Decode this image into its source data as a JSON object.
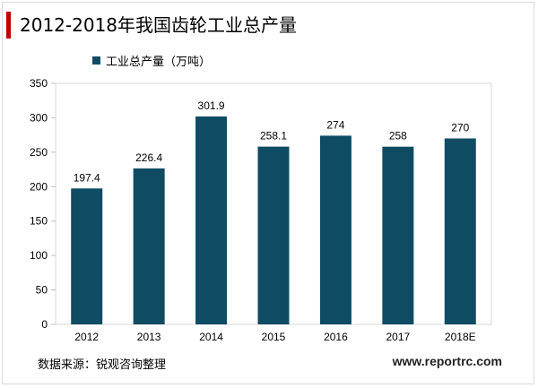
{
  "header": {
    "title": "2012-2018年我国齿轮工业总产量"
  },
  "footer": {
    "source": "数据来源：锐观咨询整理",
    "site": "www.reportrc.com"
  },
  "colors": {
    "bar": "#0f4c63",
    "accent": "#c00000",
    "grid": "#d9d9d9"
  },
  "chart_data": {
    "type": "bar",
    "title": "2012-2018年我国齿轮工业总产量",
    "categories": [
      "2012",
      "2013",
      "2014",
      "2015",
      "2016",
      "2017",
      "2018E"
    ],
    "series": [
      {
        "name": "工业总产量（万吨）",
        "values": [
          197.4,
          226.4,
          301.9,
          258.1,
          274,
          258,
          270
        ],
        "labels": [
          "197.4",
          "226.4",
          "301.9",
          "258.1",
          "274",
          "258",
          "270"
        ]
      }
    ],
    "ylim": [
      0,
      350
    ],
    "yticks": [
      0,
      50,
      100,
      150,
      200,
      250,
      300,
      350
    ],
    "grid": false,
    "legend": "top-left"
  }
}
